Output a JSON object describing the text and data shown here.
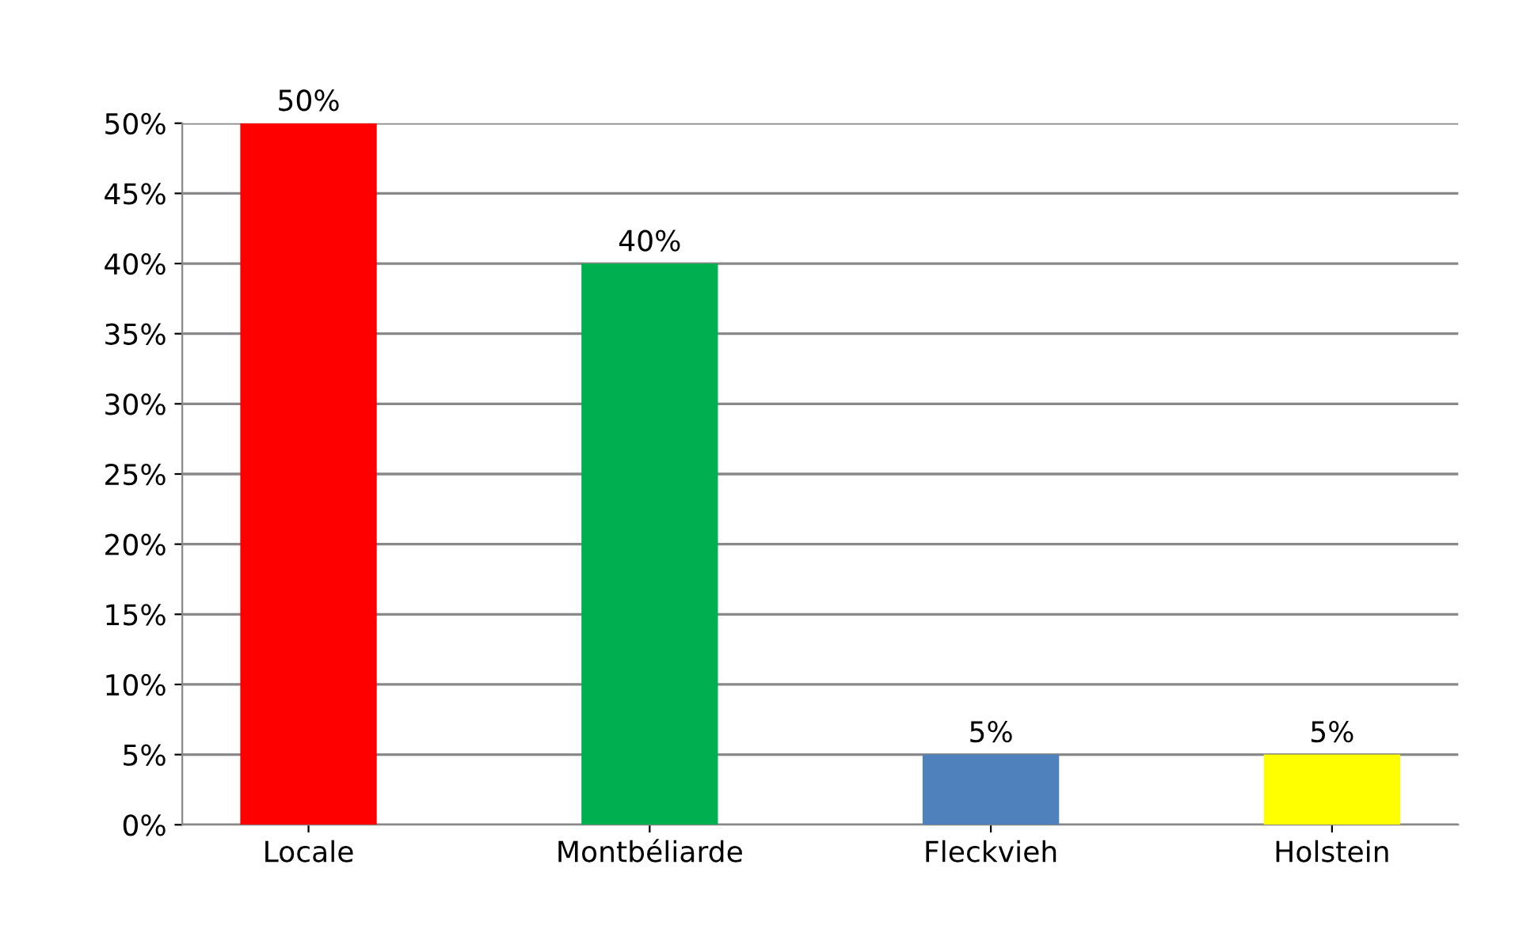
{
  "chart_data": {
    "type": "bar",
    "categories": [
      "Locale",
      "Montbéliarde",
      "Fleckvieh",
      "Holstein"
    ],
    "values": [
      50,
      40,
      5,
      5
    ],
    "colors": [
      "#ff0000",
      "#00b050",
      "#4f81bd",
      "#ffff00"
    ],
    "value_labels": [
      "50%",
      "40%",
      "5%",
      "5%"
    ],
    "ylim": [
      0,
      50
    ],
    "yticks": [
      {
        "value": 0,
        "label": "0%"
      },
      {
        "value": 5,
        "label": "5%"
      },
      {
        "value": 10,
        "label": "10%"
      },
      {
        "value": 15,
        "label": "15%"
      },
      {
        "value": 20,
        "label": "20%"
      },
      {
        "value": 25,
        "label": "25%"
      },
      {
        "value": 30,
        "label": "30%"
      },
      {
        "value": 35,
        "label": "35%"
      },
      {
        "value": 40,
        "label": "40%"
      },
      {
        "value": 45,
        "label": "45%"
      },
      {
        "value": 50,
        "label": "50%"
      }
    ],
    "grid": "y",
    "legend": false
  }
}
